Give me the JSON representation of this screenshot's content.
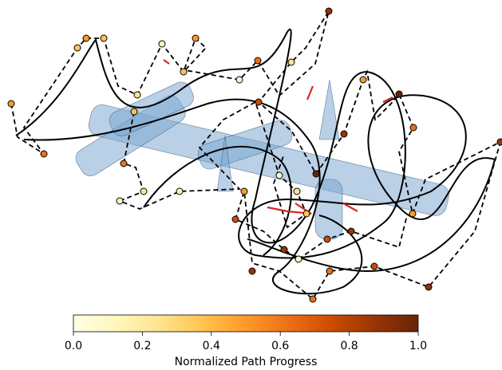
{
  "chart_data": {
    "type": "colorbar",
    "label": "Normalized Path Progress",
    "clim": [
      0,
      1
    ],
    "ticks": [
      {
        "value": 0,
        "label": "0.0"
      },
      {
        "value": 0.2,
        "label": "0.2"
      },
      {
        "value": 0.4,
        "label": "0.4"
      },
      {
        "value": 0.6,
        "label": "0.6"
      },
      {
        "value": 0.8,
        "label": "0.8"
      },
      {
        "value": 1,
        "label": "1.0"
      }
    ],
    "colors": [
      "#ffffe5",
      "#fff7bc",
      "#fee391",
      "#fec44f",
      "#fe9929",
      "#ec7014",
      "#cc4c02",
      "#993404",
      "#662506"
    ]
  }
}
